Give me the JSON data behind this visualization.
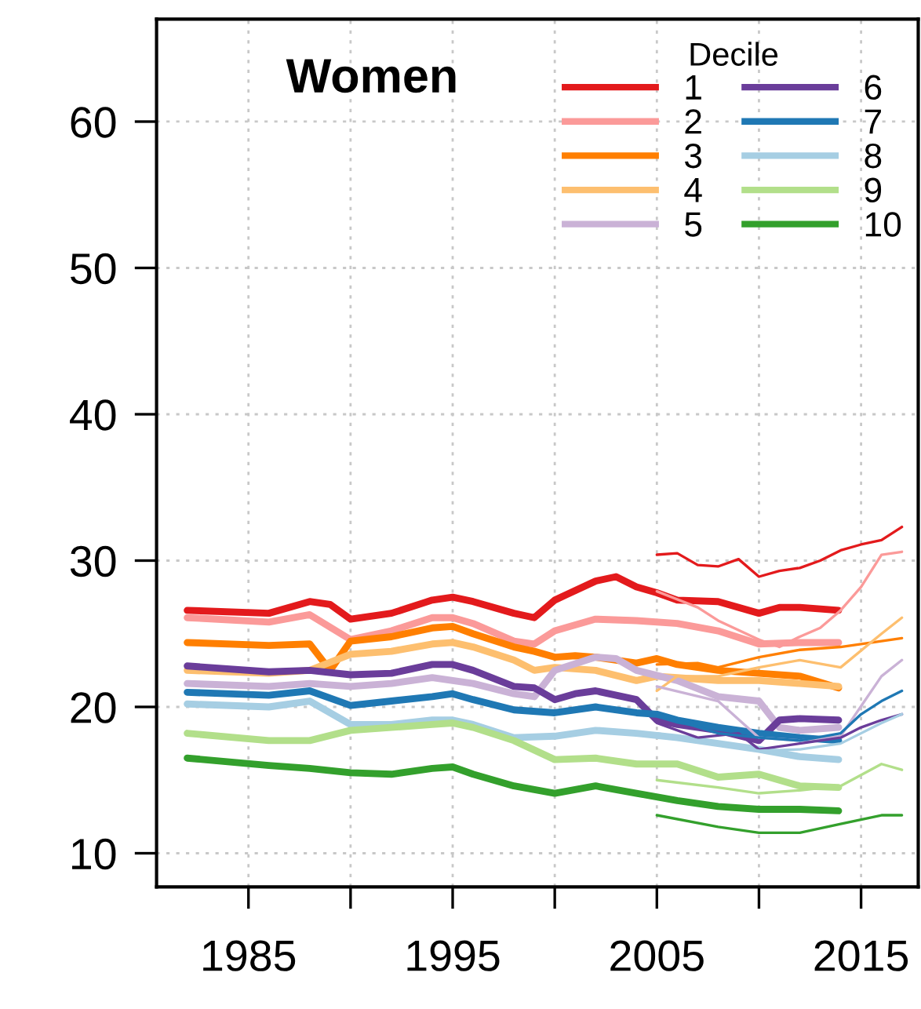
{
  "chart_data": {
    "type": "line",
    "title": "Women",
    "legend_title": "Decile",
    "legend": "top right",
    "grid": true,
    "line_style": "solid",
    "marker": "none",
    "xlim": [
      1980.5,
      2017.8
    ],
    "ylim": [
      7.7,
      67
    ],
    "xticks": [
      1985,
      {
        "value": 1990,
        "label": null
      },
      1995,
      {
        "value": 2000,
        "label": null
      },
      2005,
      {
        "value": 2010,
        "label": null
      },
      2015
    ],
    "yticks": [
      10,
      20,
      30,
      40,
      50,
      60
    ],
    "series": [
      {
        "name": "1",
        "color": "#e31a1c",
        "x": [
          1982,
          1986,
          1988,
          1989,
          1990,
          1992,
          1994,
          1995,
          1996,
          1998,
          1999,
          2000,
          2002,
          2003,
          2004,
          2005,
          2006,
          2008,
          2010,
          2011,
          2012,
          2013.9
        ],
        "values": [
          26.6,
          26.4,
          27.2,
          27.0,
          26.0,
          26.4,
          27.3,
          27.5,
          27.2,
          26.4,
          26.1,
          27.3,
          28.6,
          28.9,
          28.2,
          27.8,
          27.3,
          27.2,
          26.4,
          26.8,
          26.8,
          26.6
        ]
      },
      {
        "name": "2",
        "color": "#fb9a99",
        "x": [
          1982,
          1986,
          1988,
          1990,
          1992,
          1994,
          1995,
          1996,
          1998,
          1999,
          2000,
          2002,
          2004,
          2006,
          2008,
          2010,
          2012,
          2013.9
        ],
        "values": [
          26.1,
          25.8,
          26.3,
          24.6,
          25.2,
          26.1,
          26.1,
          25.7,
          24.5,
          24.3,
          25.2,
          26.0,
          25.9,
          25.7,
          25.2,
          24.3,
          24.4,
          24.4
        ]
      },
      {
        "name": "3",
        "color": "#ff7f00",
        "x": [
          1982,
          1986,
          1988,
          1989,
          1990,
          1992,
          1994,
          1995,
          1996,
          1998,
          1999,
          2000,
          2001,
          2002,
          2004,
          2005,
          2006,
          2008,
          2010,
          2012,
          2013.9
        ],
        "values": [
          24.4,
          24.2,
          24.3,
          22.5,
          24.5,
          24.8,
          25.4,
          25.5,
          25.0,
          24.1,
          23.8,
          23.4,
          23.5,
          23.4,
          23.0,
          23.3,
          22.9,
          22.5,
          22.3,
          22.1,
          21.3
        ]
      },
      {
        "name": "4",
        "color": "#fdbf6f",
        "x": [
          1982,
          1986,
          1988,
          1990,
          1992,
          1994,
          1995,
          1996,
          1998,
          1999,
          2000,
          2002,
          2004,
          2005,
          2006,
          2008,
          2010,
          2012,
          2013.9
        ],
        "values": [
          22.5,
          22.3,
          22.5,
          23.6,
          23.8,
          24.3,
          24.4,
          24.1,
          23.2,
          22.5,
          22.7,
          22.5,
          21.8,
          22.1,
          22.0,
          21.8,
          21.8,
          21.6,
          21.4
        ]
      },
      {
        "name": "5",
        "color": "#cab2d6",
        "x": [
          1982,
          1986,
          1988,
          1990,
          1992,
          1994,
          1996,
          1998,
          1999,
          2000,
          2002,
          2003,
          2004,
          2006,
          2008,
          2010,
          2011,
          2012,
          2013.9
        ],
        "values": [
          21.6,
          21.4,
          21.6,
          21.4,
          21.6,
          22.0,
          21.6,
          20.9,
          20.7,
          22.5,
          23.4,
          23.3,
          22.5,
          21.8,
          20.7,
          20.4,
          18.6,
          18.4,
          18.6
        ]
      },
      {
        "name": "6",
        "color": "#6a3d9a",
        "x": [
          1982,
          1986,
          1988,
          1990,
          1992,
          1994,
          1995,
          1996,
          1998,
          1999,
          2000,
          2001,
          2002,
          2004,
          2005,
          2006,
          2008,
          2010,
          2011,
          2012,
          2013.9
        ],
        "values": [
          22.8,
          22.4,
          22.5,
          22.2,
          22.3,
          22.9,
          22.9,
          22.5,
          21.4,
          21.3,
          20.5,
          20.9,
          21.1,
          20.5,
          19.1,
          18.8,
          18.4,
          17.7,
          19.1,
          19.2,
          19.1
        ]
      },
      {
        "name": "7",
        "color": "#1f78b4",
        "x": [
          1982,
          1986,
          1988,
          1990,
          1992,
          1994,
          1995,
          1996,
          1998,
          2000,
          2002,
          2004,
          2005,
          2006,
          2008,
          2010,
          2012,
          2013.9
        ],
        "values": [
          21.0,
          20.8,
          21.1,
          20.1,
          20.4,
          20.7,
          20.9,
          20.5,
          19.8,
          19.6,
          20.0,
          19.6,
          19.5,
          19.1,
          18.6,
          18.2,
          17.9,
          17.7
        ]
      },
      {
        "name": "8",
        "color": "#a6cee3",
        "x": [
          1982,
          1986,
          1988,
          1990,
          1992,
          1994,
          1995,
          1996,
          1998,
          2000,
          2002,
          2004,
          2006,
          2008,
          2010,
          2012,
          2013.9
        ],
        "values": [
          20.2,
          20.0,
          20.4,
          18.8,
          18.8,
          19.1,
          19.1,
          18.8,
          17.9,
          18.0,
          18.4,
          18.2,
          17.9,
          17.5,
          17.1,
          16.6,
          16.4
        ]
      },
      {
        "name": "9",
        "color": "#b2df8a",
        "x": [
          1982,
          1986,
          1988,
          1990,
          1992,
          1994,
          1995,
          1996,
          1998,
          2000,
          2002,
          2004,
          2006,
          2008,
          2010,
          2012,
          2013.9
        ],
        "values": [
          18.2,
          17.7,
          17.7,
          18.4,
          18.6,
          18.8,
          18.9,
          18.6,
          17.7,
          16.4,
          16.5,
          16.1,
          16.1,
          15.2,
          15.4,
          14.6,
          14.5
        ]
      },
      {
        "name": "10",
        "color": "#33a02c",
        "x": [
          1982,
          1986,
          1988,
          1990,
          1992,
          1994,
          1995,
          1996,
          1998,
          2000,
          2002,
          2004,
          2006,
          2008,
          2010,
          2012,
          2013.9
        ],
        "values": [
          16.5,
          16.0,
          15.8,
          15.5,
          15.4,
          15.8,
          15.9,
          15.4,
          14.6,
          14.1,
          14.6,
          14.1,
          13.6,
          13.2,
          13.0,
          13.0,
          12.9
        ]
      },
      {
        "color": "#e31a1c",
        "x": [
          2005,
          2006,
          2007,
          2008,
          2009,
          2010,
          2011,
          2012,
          2013,
          2014,
          2015,
          2016,
          2017
        ],
        "values": [
          30.4,
          30.5,
          29.7,
          29.6,
          30.1,
          28.9,
          29.3,
          29.5,
          30.0,
          30.7,
          31.1,
          31.4,
          32.3
        ]
      },
      {
        "color": "#fb9a99",
        "x": [
          2005,
          2007,
          2008,
          2010,
          2011,
          2012,
          2013,
          2014,
          2015,
          2016,
          2017
        ],
        "values": [
          27.9,
          26.8,
          25.9,
          24.6,
          24.1,
          24.8,
          25.4,
          26.6,
          28.2,
          30.4,
          30.6
        ]
      },
      {
        "color": "#ff7f00",
        "x": [
          2005,
          2007,
          2008,
          2010,
          2012,
          2014,
          2016,
          2017
        ],
        "values": [
          22.9,
          23.0,
          22.7,
          23.4,
          23.9,
          24.1,
          24.5,
          24.7
        ]
      },
      {
        "color": "#fdbf6f",
        "x": [
          2005,
          2006,
          2008,
          2010,
          2012,
          2014,
          2016,
          2017
        ],
        "values": [
          21.1,
          22.1,
          22.1,
          22.7,
          23.2,
          22.7,
          25.0,
          26.1
        ]
      },
      {
        "color": "#cab2d6",
        "x": [
          2005,
          2008,
          2010,
          2012,
          2014,
          2016,
          2017
        ],
        "values": [
          21.4,
          20.4,
          17.9,
          17.7,
          18.0,
          22.1,
          23.2
        ]
      },
      {
        "color": "#6a3d9a",
        "x": [
          2005,
          2007,
          2009,
          2010,
          2012,
          2014,
          2015,
          2016,
          2017
        ],
        "values": [
          18.9,
          17.9,
          18.2,
          17.1,
          17.5,
          17.9,
          18.6,
          19.1,
          19.5
        ]
      },
      {
        "color": "#1f78b4",
        "x": [
          2005,
          2008,
          2010,
          2012,
          2014,
          2015,
          2016,
          2017
        ],
        "values": [
          19.5,
          18.2,
          17.9,
          17.7,
          18.2,
          19.5,
          20.4,
          21.1
        ]
      },
      {
        "color": "#a6cee3",
        "x": [
          2005,
          2008,
          2010,
          2012,
          2014,
          2016,
          2017
        ],
        "values": [
          18.2,
          17.5,
          17.0,
          17.1,
          17.5,
          18.9,
          19.5
        ]
      },
      {
        "color": "#b2df8a",
        "x": [
          2005,
          2008,
          2010,
          2012,
          2014,
          2016,
          2017
        ],
        "values": [
          15.0,
          14.5,
          14.1,
          14.3,
          14.6,
          16.1,
          15.7
        ]
      },
      {
        "color": "#33a02c",
        "x": [
          2005,
          2008,
          2010,
          2012,
          2014,
          2016,
          2017
        ],
        "values": [
          12.6,
          11.8,
          11.4,
          11.4,
          12.0,
          12.6,
          12.6
        ]
      }
    ]
  }
}
